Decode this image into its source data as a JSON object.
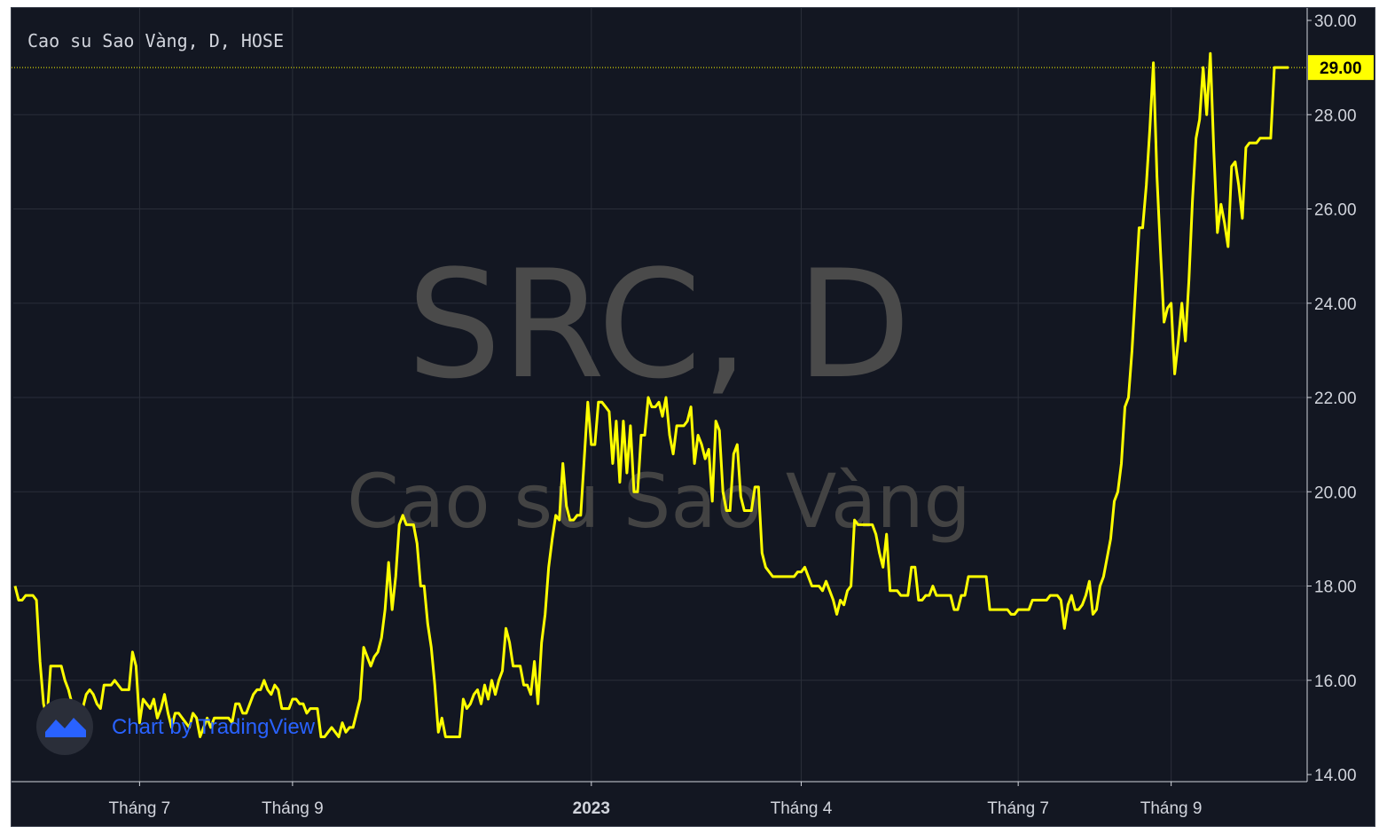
{
  "chart_data": {
    "type": "line",
    "title": "Cao su Sao Vàng, D, HOSE",
    "watermark": {
      "symbol": "SRC, D",
      "name": "Cao su Sao Vàng"
    },
    "brand": "Chart by TradingView",
    "line_color": "#ffff00",
    "background": "#131722",
    "grid": true,
    "ylim": [
      14,
      30
    ],
    "y_ticks": [
      "30.00",
      "28.00",
      "26.00",
      "24.00",
      "22.00",
      "20.00",
      "18.00",
      "16.00",
      "14.00"
    ],
    "x_ticks": [
      {
        "label": "Tháng 7",
        "index": 35,
        "bold": false
      },
      {
        "label": "Tháng 9",
        "index": 78,
        "bold": false
      },
      {
        "label": "2023",
        "index": 162,
        "bold": true
      },
      {
        "label": "Tháng 4",
        "index": 221,
        "bold": false
      },
      {
        "label": "Tháng 7",
        "index": 282,
        "bold": false
      },
      {
        "label": "Tháng 9",
        "index": 325,
        "bold": false
      }
    ],
    "last_value": "29.00",
    "values": [
      18.0,
      17.7,
      17.7,
      17.8,
      17.8,
      17.8,
      17.7,
      16.4,
      15.5,
      15.2,
      16.3,
      16.3,
      16.3,
      16.3,
      16.0,
      15.8,
      15.5,
      15.4,
      15.2,
      15.4,
      15.7,
      15.8,
      15.7,
      15.5,
      15.4,
      15.9,
      15.9,
      15.9,
      16.0,
      15.9,
      15.8,
      15.8,
      15.8,
      16.6,
      16.3,
      15.1,
      15.6,
      15.5,
      15.4,
      15.6,
      15.2,
      15.4,
      15.7,
      15.3,
      15.0,
      15.3,
      15.3,
      15.2,
      15.1,
      15.0,
      15.3,
      15.2,
      14.8,
      15.0,
      15.2,
      15.0,
      15.2,
      15.2,
      15.2,
      15.2,
      15.2,
      15.1,
      15.5,
      15.5,
      15.3,
      15.3,
      15.5,
      15.7,
      15.8,
      15.8,
      16.0,
      15.8,
      15.7,
      15.9,
      15.8,
      15.4,
      15.4,
      15.4,
      15.6,
      15.6,
      15.5,
      15.5,
      15.3,
      15.4,
      15.4,
      15.4,
      14.8,
      14.8,
      14.9,
      15.0,
      14.9,
      14.8,
      15.1,
      14.9,
      15.0,
      15.0,
      15.3,
      15.6,
      16.7,
      16.5,
      16.3,
      16.5,
      16.6,
      16.9,
      17.5,
      18.5,
      17.5,
      18.2,
      19.3,
      19.5,
      19.3,
      19.3,
      19.3,
      18.9,
      18.0,
      18.0,
      17.2,
      16.7,
      15.9,
      14.9,
      15.2,
      14.8,
      14.8,
      14.8,
      14.8,
      14.8,
      15.6,
      15.4,
      15.5,
      15.7,
      15.8,
      15.5,
      15.9,
      15.6,
      16.0,
      15.7,
      16.0,
      16.2,
      17.1,
      16.8,
      16.3,
      16.3,
      16.3,
      15.9,
      15.9,
      15.7,
      16.4,
      15.5,
      16.8,
      17.4,
      18.4,
      19.0,
      19.5,
      19.4,
      20.6,
      19.7,
      19.4,
      19.4,
      19.5,
      19.5,
      20.7,
      21.9,
      21.0,
      21.0,
      21.9,
      21.9,
      21.8,
      21.7,
      20.6,
      21.5,
      20.2,
      21.5,
      20.4,
      21.4,
      20.0,
      20.0,
      21.2,
      21.2,
      22.0,
      21.8,
      21.8,
      21.9,
      21.6,
      22.0,
      21.2,
      20.8,
      21.4,
      21.4,
      21.4,
      21.5,
      21.8,
      20.6,
      21.2,
      21.0,
      20.7,
      20.9,
      19.8,
      21.5,
      21.3,
      20.0,
      19.6,
      19.6,
      20.8,
      21.0,
      19.9,
      19.6,
      19.6,
      19.6,
      20.1,
      20.1,
      18.7,
      18.4,
      18.3,
      18.2,
      18.2,
      18.2,
      18.2,
      18.2,
      18.2,
      18.2,
      18.3,
      18.3,
      18.4,
      18.2,
      18.0,
      18.0,
      18.0,
      17.9,
      18.1,
      17.9,
      17.7,
      17.4,
      17.7,
      17.6,
      17.9,
      18.0,
      19.4,
      19.3,
      19.3,
      19.3,
      19.3,
      19.3,
      19.1,
      18.7,
      18.4,
      19.1,
      17.9,
      17.9,
      17.9,
      17.8,
      17.8,
      17.8,
      18.4,
      18.4,
      17.7,
      17.7,
      17.8,
      17.8,
      18.0,
      17.8,
      17.8,
      17.8,
      17.8,
      17.8,
      17.5,
      17.5,
      17.8,
      17.8,
      18.2,
      18.2,
      18.2,
      18.2,
      18.2,
      18.2,
      17.5,
      17.5,
      17.5,
      17.5,
      17.5,
      17.5,
      17.4,
      17.4,
      17.5,
      17.5,
      17.5,
      17.5,
      17.7,
      17.7,
      17.7,
      17.7,
      17.7,
      17.8,
      17.8,
      17.8,
      17.7,
      17.1,
      17.6,
      17.8,
      17.5,
      17.5,
      17.6,
      17.8,
      18.1,
      17.4,
      17.5,
      18.0,
      18.2,
      18.6,
      19.0,
      19.8,
      20.0,
      20.6,
      21.8,
      22.0,
      23.0,
      24.3,
      25.6,
      25.6,
      26.5,
      27.7,
      29.1,
      26.7,
      25.1,
      23.6,
      23.9,
      24.0,
      22.5,
      23.2,
      24.0,
      23.2,
      24.5,
      26.2,
      27.5,
      27.9,
      29.0,
      28.0,
      29.3,
      27.2,
      25.5,
      26.1,
      25.7,
      25.2,
      26.9,
      27.0,
      26.5,
      25.8,
      27.3,
      27.4,
      27.4,
      27.4,
      27.5,
      27.5,
      27.5,
      27.5,
      29.0,
      29.0,
      29.0,
      29.0,
      29.0
    ]
  }
}
